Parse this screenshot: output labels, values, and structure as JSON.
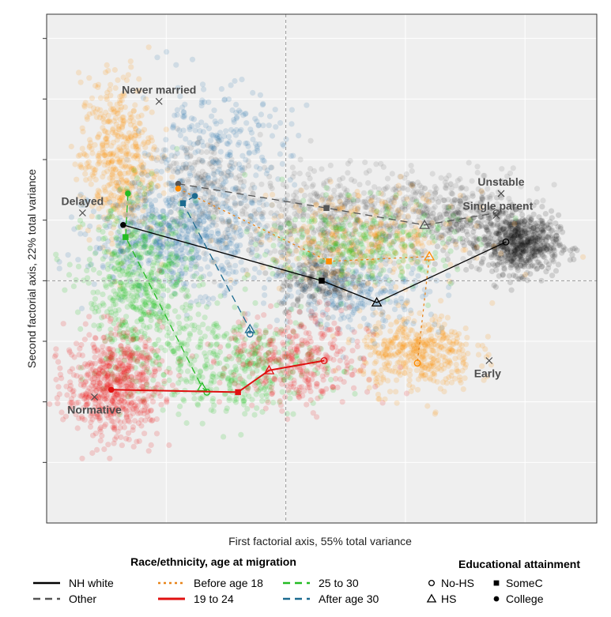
{
  "chart_data": {
    "type": "scatter",
    "xlabel": "First factorial axis, 55% total variance",
    "ylabel": "Second factorial axis, 22% total variance",
    "xlim": [
      -1.0,
      1.3
    ],
    "ylim": [
      -1.0,
      1.1
    ],
    "grid": true,
    "legend_placement": "bottom",
    "typology_points": [
      {
        "label": "Never married",
        "x": -0.53,
        "y": 0.74
      },
      {
        "label": "Delayed",
        "x": -0.85,
        "y": 0.28
      },
      {
        "label": "Unstable",
        "x": 0.9,
        "y": 0.36
      },
      {
        "label": "Single parent",
        "x": 0.88,
        "y": 0.27
      },
      {
        "label": "Normative",
        "x": -0.8,
        "y": -0.48
      },
      {
        "label": "Early",
        "x": 0.85,
        "y": -0.33
      }
    ],
    "clouds": [
      {
        "group": "Other",
        "color": "#3a3a3a",
        "opacity": 0.11,
        "r": 3.6,
        "blobs": [
          {
            "x": 0.2,
            "y": 0.25,
            "sx": 0.22,
            "sy": 0.1,
            "n": 500
          },
          {
            "x": -0.35,
            "y": 0.38,
            "sx": 0.12,
            "sy": 0.11,
            "n": 250
          },
          {
            "x": 0.65,
            "y": 0.3,
            "sx": 0.18,
            "sy": 0.08,
            "n": 250
          }
        ]
      },
      {
        "group": "NH white",
        "color": "#111111",
        "opacity": 0.14,
        "r": 3.6,
        "blobs": [
          {
            "x": 0.98,
            "y": 0.15,
            "sx": 0.08,
            "sy": 0.06,
            "n": 650
          },
          {
            "x": 0.15,
            "y": 0.0,
            "sx": 0.09,
            "sy": 0.06,
            "n": 200
          },
          {
            "x": 0.75,
            "y": 0.25,
            "sx": 0.12,
            "sy": 0.06,
            "n": 150
          }
        ]
      },
      {
        "group": "Before age 18",
        "color": "#ff8c00",
        "opacity": 0.16,
        "r": 3.6,
        "blobs": [
          {
            "x": -0.7,
            "y": 0.5,
            "sx": 0.08,
            "sy": 0.17,
            "n": 500
          },
          {
            "x": 0.55,
            "y": -0.3,
            "sx": 0.12,
            "sy": 0.08,
            "n": 450
          },
          {
            "x": 0.3,
            "y": 0.18,
            "sx": 0.22,
            "sy": 0.09,
            "n": 350
          }
        ]
      },
      {
        "group": "After age 30",
        "color": "#1b6ca8",
        "opacity": 0.15,
        "r": 3.6,
        "blobs": [
          {
            "x": -0.45,
            "y": 0.18,
            "sx": 0.18,
            "sy": 0.11,
            "n": 650
          },
          {
            "x": -0.3,
            "y": 0.55,
            "sx": 0.16,
            "sy": 0.13,
            "n": 250
          },
          {
            "x": 0.3,
            "y": -0.05,
            "sx": 0.18,
            "sy": 0.08,
            "n": 250
          }
        ]
      },
      {
        "group": "25 to 30",
        "color": "#12c012",
        "opacity": 0.16,
        "r": 3.6,
        "blobs": [
          {
            "x": -0.6,
            "y": -0.05,
            "sx": 0.12,
            "sy": 0.18,
            "n": 600
          },
          {
            "x": -0.2,
            "y": -0.35,
            "sx": 0.18,
            "sy": 0.1,
            "n": 400
          },
          {
            "x": 0.3,
            "y": 0.15,
            "sx": 0.2,
            "sy": 0.09,
            "n": 300
          }
        ]
      },
      {
        "group": "19 to 24",
        "color": "#ee1111",
        "opacity": 0.16,
        "r": 3.6,
        "blobs": [
          {
            "x": -0.72,
            "y": -0.43,
            "sx": 0.1,
            "sy": 0.11,
            "n": 650
          },
          {
            "x": 0.05,
            "y": -0.33,
            "sx": 0.15,
            "sy": 0.1,
            "n": 350
          }
        ]
      }
    ],
    "series": [
      {
        "name": "NH white",
        "color": "#000000",
        "dash": "",
        "marker_color": "#000000",
        "points": [
          {
            "edu": "College",
            "x": -0.68,
            "y": 0.23
          },
          {
            "edu": "SomeC",
            "x": 0.15,
            "y": 0.0
          },
          {
            "edu": "HS",
            "x": 0.38,
            "y": -0.09
          },
          {
            "edu": "No-HS",
            "x": 0.92,
            "y": 0.16
          }
        ]
      },
      {
        "name": "Other",
        "color": "#555555",
        "dash": "9 6",
        "marker_color": "#555555",
        "points": [
          {
            "edu": "College",
            "x": -0.45,
            "y": 0.4
          },
          {
            "edu": "SomeC",
            "x": 0.17,
            "y": 0.3
          },
          {
            "edu": "HS",
            "x": 0.58,
            "y": 0.23
          },
          {
            "edu": "No-HS",
            "x": 0.88,
            "y": 0.28
          }
        ]
      },
      {
        "name": "Before age 18",
        "color": "#e8841a",
        "dash": "3 4",
        "marker_color": "#ff8c00",
        "points": [
          {
            "edu": "College",
            "x": -0.45,
            "y": 0.38
          },
          {
            "edu": "SomeC",
            "x": 0.18,
            "y": 0.08
          },
          {
            "edu": "HS",
            "x": 0.6,
            "y": 0.1
          },
          {
            "edu": "No-HS",
            "x": 0.55,
            "y": -0.34
          }
        ]
      },
      {
        "name": "25 to 30",
        "color": "#22bb22",
        "dash": "9 6",
        "marker_color": "#22bb22",
        "points": [
          {
            "edu": "College",
            "x": -0.66,
            "y": 0.36
          },
          {
            "edu": "SomeC",
            "x": -0.67,
            "y": 0.18
          },
          {
            "edu": "HS",
            "x": -0.35,
            "y": -0.44
          },
          {
            "edu": "No-HS",
            "x": -0.33,
            "y": -0.46
          }
        ]
      },
      {
        "name": "After age 30",
        "color": "#1b6a8f",
        "dash": "9 6",
        "marker_color": "#1b6a8f",
        "points": [
          {
            "edu": "College",
            "x": -0.38,
            "y": 0.35
          },
          {
            "edu": "SomeC",
            "x": -0.43,
            "y": 0.32
          },
          {
            "edu": "HS",
            "x": -0.15,
            "y": -0.2
          },
          {
            "edu": "No-HS",
            "x": -0.15,
            "y": -0.22
          }
        ]
      },
      {
        "name": "19 to 24",
        "color": "#e01010",
        "dash": "",
        "marker_color": "#e01010",
        "points": [
          {
            "edu": "College",
            "x": -0.73,
            "y": -0.45
          },
          {
            "edu": "SomeC",
            "x": -0.2,
            "y": -0.46
          },
          {
            "edu": "HS",
            "x": -0.07,
            "y": -0.37
          },
          {
            "edu": "No-HS",
            "x": 0.16,
            "y": -0.33
          }
        ]
      }
    ]
  },
  "legend": {
    "race_title": "Race/ethnicity, age at migration",
    "race_items": [
      {
        "label": "NH white",
        "color": "#000000",
        "dash": ""
      },
      {
        "label": "Other",
        "color": "#555555",
        "dash": "9 6"
      },
      {
        "label": "Before age 18",
        "color": "#e8841a",
        "dash": "3 4"
      },
      {
        "label": "19 to 24",
        "color": "#e01010",
        "dash": ""
      },
      {
        "label": "25 to 30",
        "color": "#22bb22",
        "dash": "9 6"
      },
      {
        "label": "After age 30",
        "color": "#1b6a8f",
        "dash": "9 6"
      }
    ],
    "edu_title": "Educational attainment",
    "edu_items": [
      {
        "label": "No-HS",
        "shape": "circle-open"
      },
      {
        "label": "HS",
        "shape": "triangle-open"
      },
      {
        "label": "SomeC",
        "shape": "square"
      },
      {
        "label": "College",
        "shape": "circle"
      }
    ]
  },
  "colors": {
    "panel": "#efefef",
    "grid": "#ffffff",
    "frame": "#333333",
    "refline": "#9a9a9a"
  }
}
